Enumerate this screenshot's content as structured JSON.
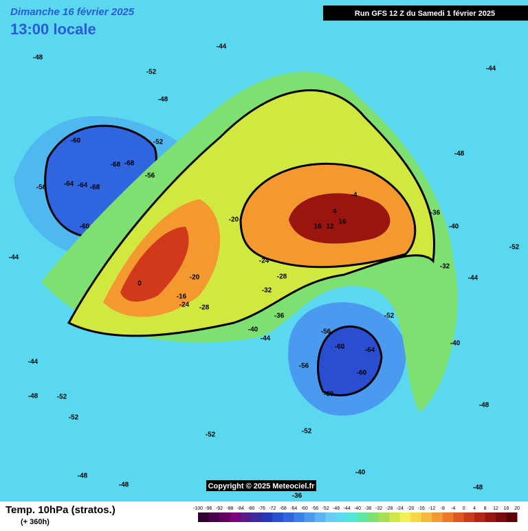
{
  "header": {
    "date": "Dimanche 16 février 2025",
    "time": "13:00 locale",
    "run": "Run GFS 12 Z du Samedi 1 février 2025"
  },
  "map": {
    "labels": [
      "-60",
      "-64",
      "-68",
      "-68",
      "-64",
      "-68",
      "-60",
      "-56",
      "-56",
      "-52",
      "-48",
      "-52",
      "-44",
      "-48",
      "-44",
      "-44",
      "-48",
      "-52",
      "-52",
      "-52",
      "-48",
      "-48",
      "-20",
      "-24",
      "-28",
      "-32",
      "-36",
      "-40",
      "-44",
      "-56",
      "-60",
      "-64",
      "-60",
      "-60",
      "-56",
      "-52",
      "-52",
      "4",
      "-4",
      "16",
      "12",
      "16",
      "0",
      "-20",
      "-24",
      "-28",
      "-16",
      "-40",
      "-44",
      "-48",
      "-44",
      "-52",
      "-48",
      "-48",
      "-40",
      "-36",
      "-32",
      "-36",
      "-40"
    ],
    "copyright": "Copyright © 2025 Meteociel.fr"
  },
  "footer": {
    "title": "Temp. 10hPa (stratos.)",
    "forecast": "(+ 360h)"
  },
  "legend": {
    "labels": [
      -100,
      -96,
      -92,
      -88,
      -84,
      -80,
      -76,
      -72,
      -68,
      -64,
      -60,
      -56,
      -52,
      -48,
      -44,
      -40,
      -36,
      -32,
      -28,
      -24,
      -20,
      -16,
      -12,
      -8,
      -4,
      0,
      4,
      8,
      12,
      16,
      20
    ],
    "colors": [
      "#300030",
      "#4a004a",
      "#640064",
      "#7d007d",
      "#5a1a8c",
      "#3b2aa0",
      "#2838b8",
      "#2a4ed0",
      "#2f66e0",
      "#3a80ea",
      "#4a9af0",
      "#5ab4f4",
      "#66ccf4",
      "#5adcf0",
      "#50e8d8",
      "#5ce8a0",
      "#7ee070",
      "#a8e050",
      "#d0e840",
      "#f0f050",
      "#f8d840",
      "#f8b838",
      "#f49830",
      "#ec7828",
      "#e05820",
      "#d03a1a",
      "#b82414",
      "#9a1410",
      "#7c0a0c",
      "#5c0408"
    ]
  }
}
